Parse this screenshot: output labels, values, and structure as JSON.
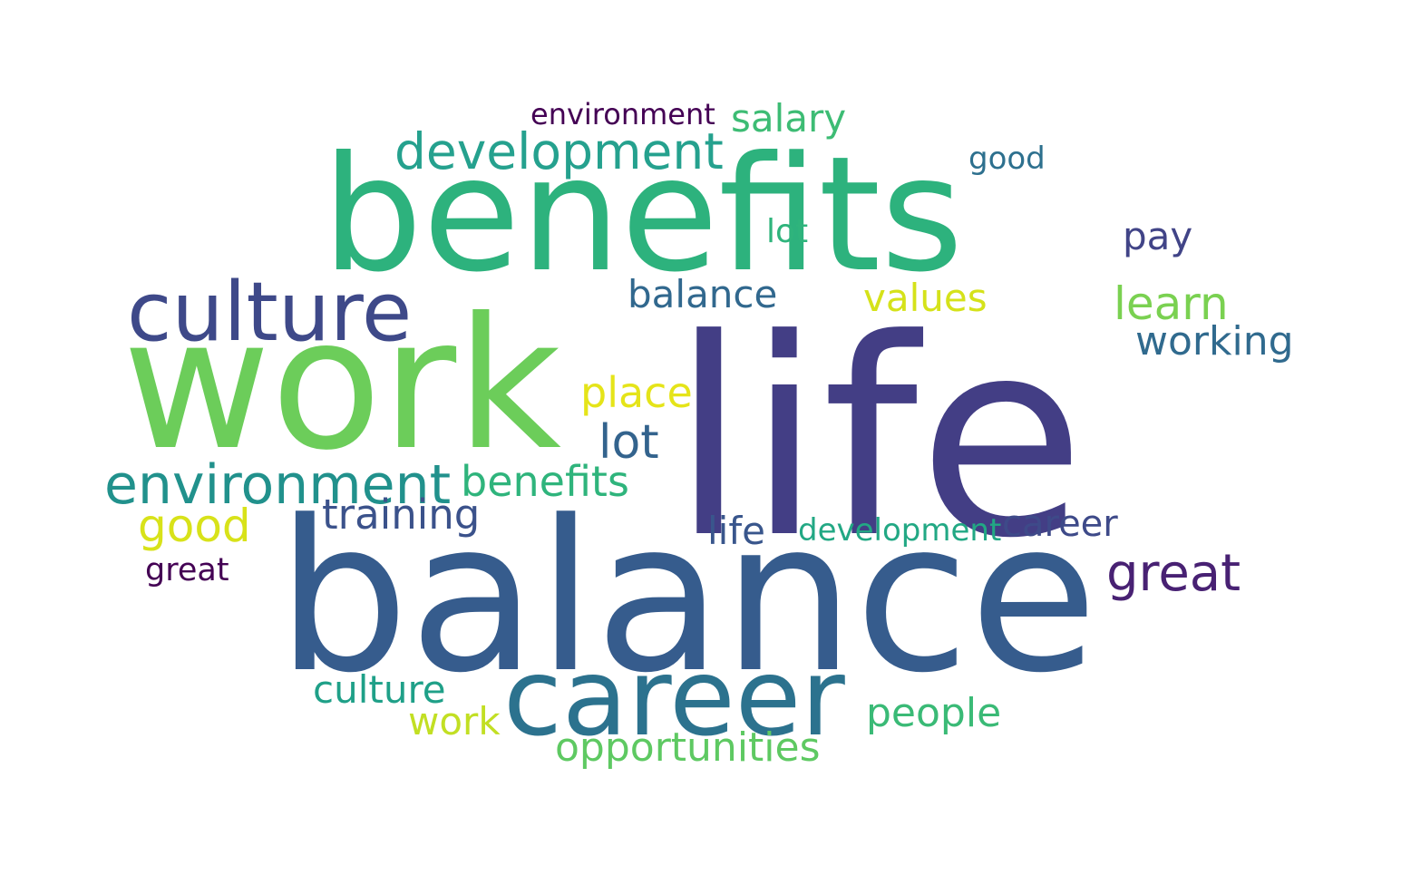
{
  "words": [
    {
      "text": "life",
      "color": "#433e85"
    },
    {
      "text": "balance",
      "color": "#365c8d"
    },
    {
      "text": "work",
      "color": "#6ccd5a"
    },
    {
      "text": "benefits",
      "color": "#2db27d"
    },
    {
      "text": "career",
      "color": "#2c728e"
    },
    {
      "text": "culture",
      "color": "#3e4989"
    },
    {
      "text": "environment",
      "color": "#21918c"
    },
    {
      "text": "development",
      "color": "#25a18e"
    },
    {
      "text": "training",
      "color": "#3b528b"
    },
    {
      "text": "benefits",
      "color": "#2fb47c"
    },
    {
      "text": "good",
      "color": "#d8e219"
    },
    {
      "text": "place",
      "color": "#e5e419"
    },
    {
      "text": "lot",
      "color": "#33638d"
    },
    {
      "text": "great",
      "color": "#482173"
    },
    {
      "text": "opportunities",
      "color": "#5ec962"
    },
    {
      "text": "learn",
      "color": "#7ad151"
    },
    {
      "text": "values",
      "color": "#d5e21a"
    },
    {
      "text": "salary",
      "color": "#3dbc74"
    },
    {
      "text": "working",
      "color": "#306a8e"
    },
    {
      "text": "people",
      "color": "#3aba76"
    },
    {
      "text": "culture",
      "color": "#1fa088"
    },
    {
      "text": "development",
      "color": "#22a884"
    },
    {
      "text": "career",
      "color": "#3e4a89"
    },
    {
      "text": "great",
      "color": "#440154"
    },
    {
      "text": "work",
      "color": "#c2df23"
    },
    {
      "text": "pay",
      "color": "#414487"
    },
    {
      "text": "balance",
      "color": "#31688e"
    },
    {
      "text": "environment",
      "color": "#440154"
    },
    {
      "text": "lot",
      "color": "#2fb47c"
    },
    {
      "text": "good",
      "color": "#2d708e"
    },
    {
      "text": "life",
      "color": "#39568c"
    }
  ]
}
